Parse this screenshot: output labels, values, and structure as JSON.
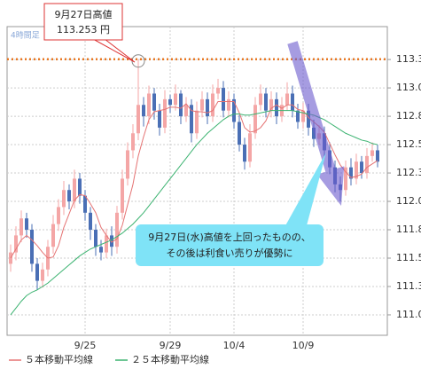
{
  "chart_data": {
    "type": "candlestick",
    "timeframe_label": "4時間足",
    "categories": [
      null,
      null,
      null,
      null,
      null,
      null,
      null,
      null,
      null,
      null,
      null,
      null,
      null,
      null,
      "9/25",
      null,
      null,
      null,
      null,
      null,
      null,
      null,
      null,
      null,
      null,
      null,
      null,
      null,
      null,
      null,
      "9/29",
      null,
      null,
      null,
      null,
      null,
      null,
      null,
      null,
      null,
      null,
      null,
      "10/4",
      null,
      null,
      null,
      null,
      null,
      null,
      null,
      null,
      null,
      null,
      null,
      null,
      "10/9",
      null,
      null,
      null,
      null,
      null,
      null,
      null,
      null,
      null,
      null,
      null,
      null,
      null,
      null
    ],
    "open": [
      111.45,
      111.55,
      111.7,
      111.85,
      111.75,
      111.45,
      111.3,
      111.4,
      111.6,
      111.8,
      111.95,
      112.1,
      112.0,
      112.2,
      112.05,
      111.9,
      111.75,
      111.6,
      111.55,
      111.7,
      111.6,
      111.9,
      112.2,
      112.45,
      112.6,
      112.85,
      112.75,
      112.95,
      112.8,
      112.65,
      112.9,
      112.85,
      112.95,
      112.75,
      112.85,
      112.6,
      112.8,
      112.9,
      112.75,
      112.95,
      113.0,
      112.8,
      112.9,
      112.7,
      112.5,
      112.35,
      112.6,
      112.85,
      112.95,
      112.8,
      112.9,
      112.75,
      112.85,
      112.95,
      112.8,
      112.7,
      112.8,
      112.65,
      112.55,
      112.6,
      112.45,
      112.3,
      112.15,
      112.1,
      112.3,
      112.2,
      112.35,
      112.25,
      112.4,
      112.45
    ],
    "high": [
      111.62,
      111.78,
      111.92,
      111.9,
      111.8,
      111.5,
      111.46,
      111.66,
      111.88,
      112.02,
      112.18,
      112.15,
      112.28,
      112.25,
      112.1,
      111.95,
      111.8,
      111.66,
      111.76,
      111.78,
      111.96,
      112.28,
      112.52,
      112.68,
      113.253,
      112.92,
      113.02,
      113.0,
      112.86,
      112.98,
      112.94,
      113.03,
      112.98,
      112.92,
      112.9,
      112.88,
      112.97,
      112.96,
      113.03,
      113.08,
      113.06,
      112.97,
      112.95,
      112.76,
      112.56,
      112.68,
      112.92,
      113.03,
      113.0,
      112.97,
      112.96,
      112.92,
      113.05,
      113.02,
      112.86,
      112.87,
      112.86,
      112.72,
      112.67,
      112.66,
      112.52,
      112.36,
      112.22,
      112.36,
      112.38,
      112.42,
      112.4,
      112.47,
      112.52,
      112.5
    ],
    "low": [
      111.38,
      111.48,
      111.64,
      111.68,
      111.38,
      111.22,
      111.24,
      111.34,
      111.54,
      111.74,
      111.88,
      111.93,
      111.94,
      111.98,
      111.83,
      111.66,
      111.52,
      111.48,
      111.5,
      111.52,
      111.54,
      111.84,
      112.14,
      112.38,
      112.54,
      112.66,
      112.68,
      112.72,
      112.58,
      112.6,
      112.78,
      112.8,
      112.68,
      112.7,
      112.52,
      112.55,
      112.74,
      112.68,
      112.7,
      112.9,
      112.74,
      112.74,
      112.64,
      112.44,
      112.28,
      112.3,
      112.55,
      112.8,
      112.74,
      112.74,
      112.68,
      112.7,
      112.8,
      112.74,
      112.64,
      112.64,
      112.58,
      112.48,
      112.5,
      112.38,
      112.24,
      112.08,
      112.0,
      112.05,
      112.14,
      112.15,
      112.2,
      112.2,
      112.35,
      112.3
    ],
    "close": [
      111.55,
      111.7,
      111.85,
      111.75,
      111.45,
      111.3,
      111.4,
      111.6,
      111.8,
      111.95,
      112.1,
      112.0,
      112.2,
      112.05,
      111.9,
      111.75,
      111.6,
      111.55,
      111.7,
      111.6,
      111.9,
      112.2,
      112.45,
      112.6,
      112.85,
      112.75,
      112.95,
      112.8,
      112.65,
      112.9,
      112.85,
      112.95,
      112.75,
      112.85,
      112.6,
      112.8,
      112.9,
      112.75,
      112.95,
      113.0,
      112.8,
      112.9,
      112.7,
      112.5,
      112.35,
      112.6,
      112.85,
      112.95,
      112.8,
      112.9,
      112.75,
      112.85,
      112.95,
      112.8,
      112.7,
      112.8,
      112.65,
      112.55,
      112.6,
      112.45,
      112.3,
      112.15,
      112.1,
      112.3,
      112.2,
      112.35,
      112.25,
      112.4,
      112.45,
      112.35
    ],
    "up_color": "#f4a6a6",
    "down_color": "#4a6fb5",
    "series": [
      {
        "name": "５本移動平均線",
        "color": "#e57373",
        "values": [
          111.5,
          111.58,
          111.66,
          111.7,
          111.66,
          111.61,
          111.55,
          111.5,
          111.51,
          111.61,
          111.77,
          111.89,
          112.01,
          112.06,
          112.05,
          111.98,
          111.9,
          111.77,
          111.7,
          111.64,
          111.67,
          111.79,
          111.97,
          112.15,
          112.4,
          112.57,
          112.72,
          112.79,
          112.8,
          112.81,
          112.83,
          112.83,
          112.82,
          112.86,
          112.8,
          112.79,
          112.79,
          112.78,
          112.8,
          112.88,
          112.88,
          112.88,
          112.88,
          112.78,
          112.65,
          112.61,
          112.62,
          112.65,
          112.71,
          112.82,
          112.85,
          112.82,
          112.85,
          112.85,
          112.81,
          112.8,
          112.74,
          112.7,
          112.66,
          112.61,
          112.51,
          112.41,
          112.32,
          112.26,
          112.21,
          112.22,
          112.24,
          112.3,
          112.33,
          112.36
        ]
      },
      {
        "name": "２５本移動平均線",
        "color": "#3cb371",
        "values": [
          111.0,
          111.06,
          111.12,
          111.17,
          111.2,
          111.22,
          111.25,
          111.28,
          111.32,
          111.36,
          111.4,
          111.44,
          111.48,
          111.52,
          111.55,
          111.58,
          111.6,
          111.62,
          111.64,
          111.66,
          111.69,
          111.72,
          111.76,
          111.8,
          111.85,
          111.9,
          111.96,
          112.02,
          112.08,
          112.14,
          112.2,
          112.26,
          112.32,
          112.38,
          112.44,
          112.5,
          112.55,
          112.6,
          112.64,
          112.68,
          112.72,
          112.75,
          112.77,
          112.77,
          112.76,
          112.76,
          112.77,
          112.78,
          112.79,
          112.8,
          112.8,
          112.8,
          112.8,
          112.8,
          112.79,
          112.78,
          112.77,
          112.76,
          112.74,
          112.72,
          112.69,
          112.66,
          112.63,
          112.6,
          112.58,
          112.56,
          112.54,
          112.53,
          112.51,
          112.5
        ]
      }
    ],
    "ylim": [
      110.82,
      113.54
    ],
    "yticks": [
      {
        "value": 111.0,
        "label": "111.0"
      },
      {
        "value": 111.25,
        "label": "111.3"
      },
      {
        "value": 111.5,
        "label": "111.5"
      },
      {
        "value": 111.75,
        "label": "111.8"
      },
      {
        "value": 112.0,
        "label": "112.0"
      },
      {
        "value": 112.25,
        "label": "112.3"
      },
      {
        "value": 112.5,
        "label": "112.5"
      },
      {
        "value": 112.75,
        "label": "112.8"
      },
      {
        "value": 113.0,
        "label": "113.0"
      },
      {
        "value": 113.25,
        "label": "113.3"
      }
    ],
    "grid": true,
    "high_annotation": {
      "title": "9月27日高値",
      "value": 113.253,
      "label": "113.253 円",
      "color": "#e87722"
    },
    "annotation": [
      "9月27日(水)高値を上回ったものの、",
      "その後は利食い売りが優勢に"
    ]
  }
}
